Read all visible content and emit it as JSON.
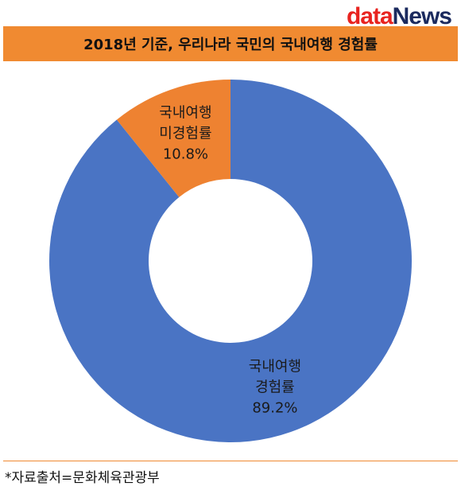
{
  "brand": {
    "part1": "data",
    "part2": "News"
  },
  "chart_data": {
    "type": "pie",
    "title": "2018년 기준, 우리나라 국민의 국내여행 경험률",
    "slices": [
      {
        "label_lines": [
          "국내여행",
          "경험률"
        ],
        "value_text": "89.2%",
        "value": 89.2,
        "color": "#4a74c4"
      },
      {
        "label_lines": [
          "국내여행",
          "미경험률"
        ],
        "value_text": "10.8%",
        "value": 10.8,
        "color": "#ee8231"
      }
    ]
  },
  "source": "*자료출처=문화체육관광부"
}
